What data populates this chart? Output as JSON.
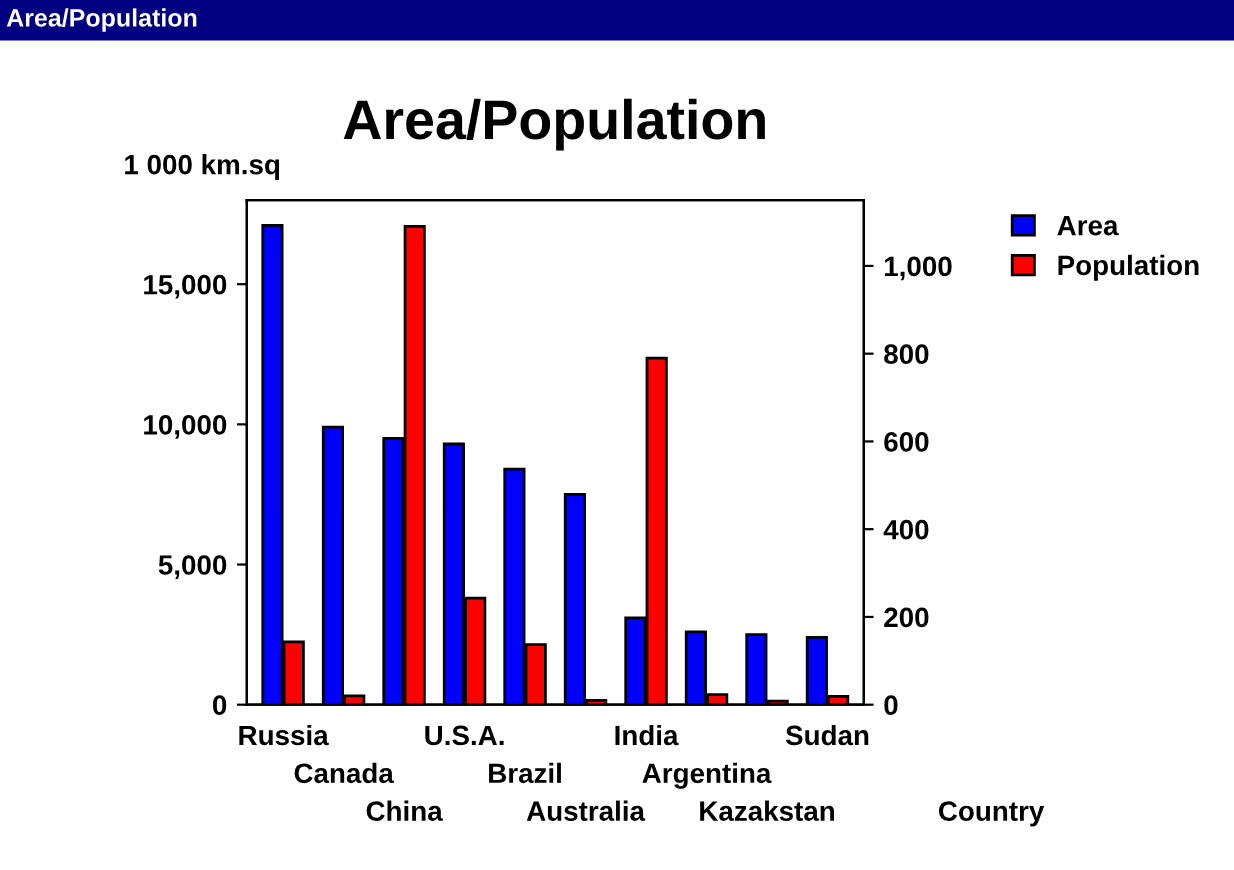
{
  "chart_data": {
    "type": "bar",
    "title": "Area/Population",
    "ylabel": "1 000 km.sq",
    "xlabel": "Country",
    "annotations": [
      "Area/Population"
    ],
    "categories": [
      "Russia",
      "Canada",
      "China",
      "U.S.A.",
      "Brazil",
      "Australia",
      "India",
      "Argentina",
      "Kazakstan",
      "Sudan"
    ],
    "series": [
      {
        "name": "Area",
        "color": "#0000ff",
        "values": [
          17100,
          9900,
          9500,
          9300,
          8400,
          7500,
          3100,
          2600,
          2500,
          2400
        ]
      },
      {
        "name": "Population",
        "color": "#ff0000",
        "axis": "y2",
        "values": [
          143,
          20,
          1090,
          243,
          137,
          10,
          790,
          23,
          8,
          19
        ]
      }
    ],
    "ylim": [
      0,
      18000
    ],
    "yticks": [
      0,
      {
        "value": 5000,
        "label": "5,000"
      },
      {
        "value": 10000,
        "label": "10,000"
      },
      {
        "value": 15000,
        "label": "15,000"
      }
    ],
    "y2lim": [
      0,
      1150
    ],
    "y2ticks": [
      0,
      200,
      400,
      600,
      800,
      {
        "value": 1000,
        "label": "1,000"
      }
    ],
    "grid": false,
    "legend": "top right"
  }
}
